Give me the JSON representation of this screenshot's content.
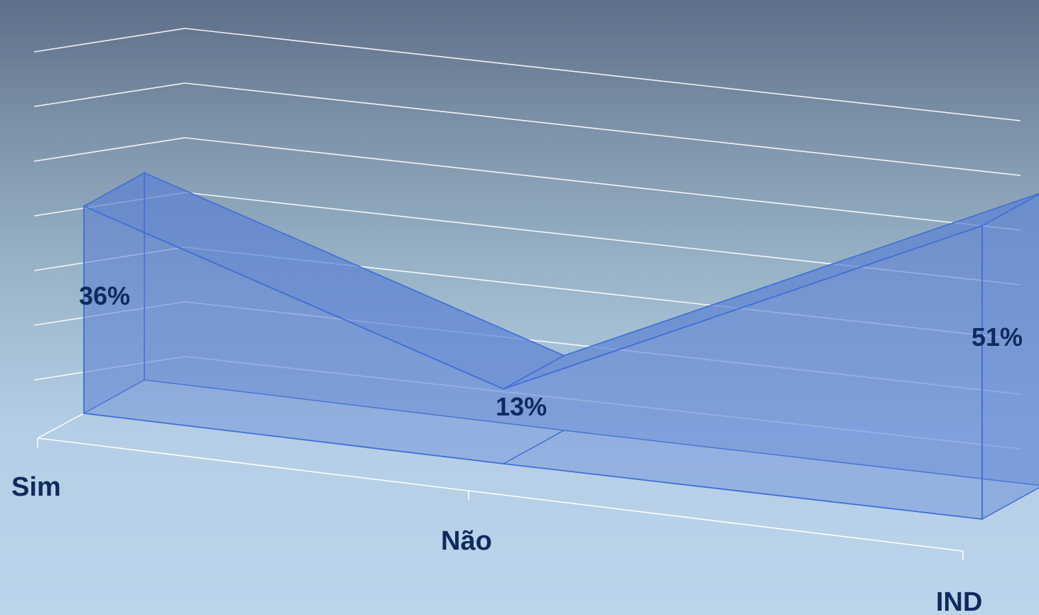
{
  "chart_data": {
    "type": "area",
    "categories": [
      "Sim",
      "Não",
      "IND"
    ],
    "values": [
      36,
      13,
      51
    ],
    "value_labels": [
      "36%",
      "13%",
      "51%"
    ],
    "ylim": [
      0,
      60
    ],
    "grid": true,
    "legend": "none",
    "title": "",
    "xlabel": "",
    "ylabel": ""
  },
  "colors": {
    "area_fill": "#5b82d4",
    "area_stroke": "#3f6fd6",
    "gridline": "#ffffff",
    "label_text": "#0f2a5c"
  }
}
